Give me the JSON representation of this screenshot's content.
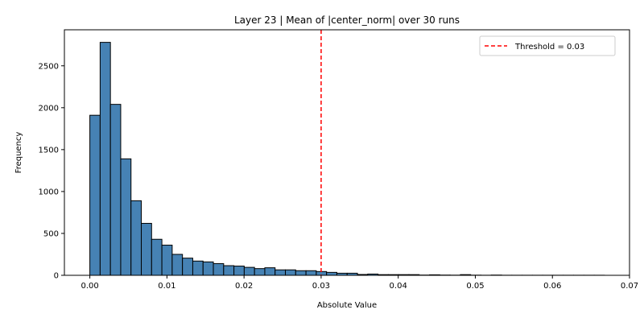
{
  "chart_data": {
    "type": "bar",
    "subtype": "histogram",
    "title": "Layer 23 | Mean of |center_norm| over 30 runs",
    "xlabel": "Absolute Value",
    "ylabel": "Frequency",
    "xlim": [
      -0.0033,
      0.07
    ],
    "ylim": [
      0,
      2930
    ],
    "xticks": [
      0.0,
      0.01,
      0.02,
      0.03,
      0.04,
      0.05,
      0.06,
      0.07
    ],
    "xtick_labels": [
      "0.00",
      "0.01",
      "0.02",
      "0.03",
      "0.04",
      "0.05",
      "0.06",
      "0.07"
    ],
    "yticks": [
      0,
      500,
      1000,
      1500,
      2000,
      2500
    ],
    "ytick_labels": [
      "0",
      "500",
      "1000",
      "1500",
      "2000",
      "2500"
    ],
    "bar_color": "#4682b4",
    "bar_edge_color": "#000000",
    "bins": {
      "start": 0.0,
      "width": 0.001335,
      "counts": [
        1910,
        2780,
        2040,
        1390,
        890,
        620,
        430,
        360,
        250,
        205,
        170,
        160,
        140,
        115,
        110,
        95,
        80,
        90,
        65,
        65,
        55,
        55,
        45,
        35,
        25,
        25,
        10,
        15,
        8,
        8,
        8,
        8,
        3,
        6,
        3,
        2,
        8,
        2,
        1,
        3,
        1,
        1,
        1,
        1,
        1,
        1,
        1,
        1,
        1,
        1
      ]
    },
    "threshold": {
      "value": 0.03,
      "color": "#ff0000",
      "style": "dashed",
      "label": "Threshold = 0.03"
    },
    "legend_position": "top-right",
    "grid": false
  }
}
